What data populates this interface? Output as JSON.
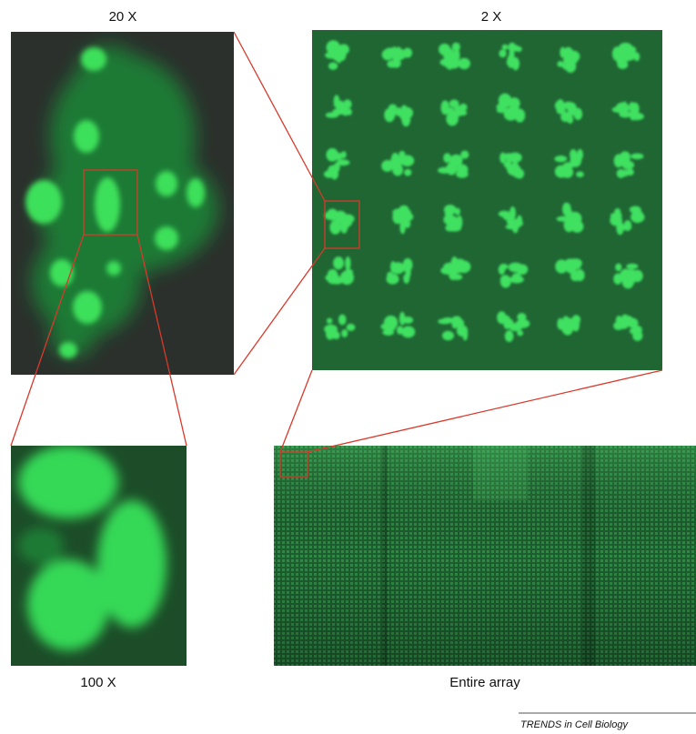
{
  "labels": {
    "zoom_20x": "20 X",
    "zoom_2x": "2 X",
    "zoom_100x": "100 X",
    "entire_array": "Entire array"
  },
  "footer": {
    "source": "TRENDS in Cell Biology"
  }
}
